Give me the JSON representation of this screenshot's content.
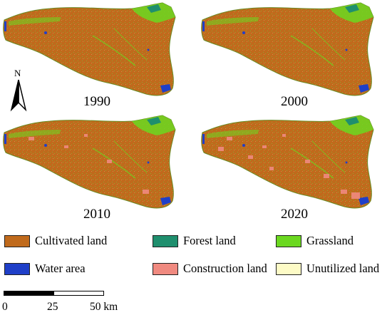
{
  "panels": [
    {
      "year": "1990"
    },
    {
      "year": "2000"
    },
    {
      "year": "2010"
    },
    {
      "year": "2020"
    }
  ],
  "north_arrow": {
    "label": "N"
  },
  "legend": {
    "items": [
      {
        "label": "Cultivated land",
        "color": "#c06a1c"
      },
      {
        "label": "Forest land",
        "color": "#1f8f6e"
      },
      {
        "label": "Grassland",
        "color": "#6bd820"
      },
      {
        "label": "Water area",
        "color": "#1f3fc8"
      },
      {
        "label": "Construction land",
        "color": "#f08a80"
      },
      {
        "label": "Unutilized land",
        "color": "#fdfbc6"
      }
    ]
  },
  "scale_bar": {
    "labels": [
      "0",
      "25",
      "50 km"
    ]
  },
  "map_colors": {
    "cultivated": "#c06a1c",
    "grassland": "#6bd820",
    "forest": "#1f8f6e",
    "water": "#1f3fc8",
    "construction": "#f08a80",
    "texture": "#8fa636"
  }
}
